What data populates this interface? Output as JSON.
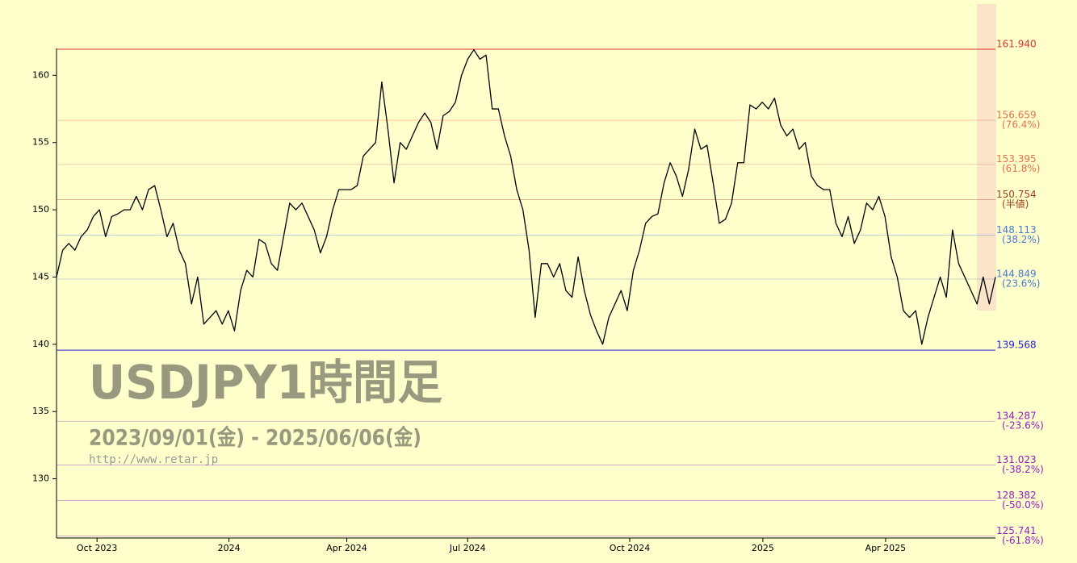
{
  "chart_data": {
    "type": "line",
    "title": "USDJPY1時間足",
    "subtitle": "2023/09/01(金) - 2025/06/06(金)",
    "source": "http://www.retar.jp",
    "color": "#000000",
    "values": [
      145,
      147,
      147.5,
      147,
      148,
      148.5,
      149.5,
      150,
      148,
      149.5,
      149.7,
      150,
      150,
      151,
      150,
      151.5,
      151.8,
      150,
      148,
      149,
      147,
      146,
      143,
      145,
      141.5,
      142,
      142.5,
      141.5,
      142.5,
      141,
      144,
      145.5,
      145,
      147.8,
      147.5,
      146,
      145.5,
      148,
      150.5,
      150,
      150.5,
      149.5,
      148.5,
      146.8,
      148,
      150,
      151.5,
      151.5,
      151.5,
      151.8,
      154,
      154.5,
      155,
      159.5,
      156,
      152,
      155,
      154.5,
      155.5,
      156.5,
      157.2,
      156.5,
      154.5,
      157,
      157.3,
      158,
      160,
      161.2,
      161.9,
      161.2,
      161.5,
      157.5,
      157.5,
      155.5,
      154,
      151.5,
      150,
      147,
      142,
      146,
      146,
      145,
      146,
      144,
      143.5,
      146.5,
      144,
      142.2,
      141,
      140,
      142,
      143,
      144,
      142.5,
      145.5,
      147,
      149,
      149.5,
      149.7,
      152,
      153.5,
      152.5,
      151,
      153,
      156,
      154.5,
      154.8,
      152,
      149,
      149.3,
      150.5,
      153.5,
      153.5,
      157.8,
      157.5,
      158,
      157.5,
      158.3,
      156.3,
      155.5,
      156,
      154.5,
      155,
      152.5,
      151.8,
      151.5,
      151.5,
      149,
      148,
      149.5,
      147.5,
      148.5,
      150.5,
      150,
      151,
      149.5,
      146.5,
      145,
      142.5,
      142,
      142.5,
      140,
      142,
      143.5,
      145,
      143.5,
      148.5,
      146,
      145,
      144,
      143,
      145,
      143,
      145
    ],
    "xlim": [
      0,
      153
    ],
    "xticks": [
      {
        "value": 6.6,
        "label": "Oct 2023"
      },
      {
        "value": 28.1,
        "label": "2024"
      },
      {
        "value": 47.3,
        "label": "Apr 2024"
      },
      {
        "value": 67,
        "label": "Jul 2024"
      },
      {
        "value": 93.4,
        "label": "Oct 2024"
      },
      {
        "value": 115.1,
        "label": "2025"
      },
      {
        "value": 135.1,
        "label": "Apr 2025"
      }
    ],
    "ylim": [
      125.6,
      162.0
    ],
    "yticks": [
      130,
      135,
      140,
      145,
      150,
      155,
      160
    ],
    "levels": [
      {
        "value": 161.94,
        "label": "161.940",
        "color": "#e03030"
      },
      {
        "value": 156.659,
        "label": "156.659",
        "ratio": "(76.4%)",
        "color": "#e8704a"
      },
      {
        "value": 153.395,
        "label": "153.395",
        "ratio": "(61.8%)",
        "color": "#e8704a"
      },
      {
        "value": 150.754,
        "label": "150.754",
        "ratio": "(半値)",
        "color": "#a04020"
      },
      {
        "value": 148.113,
        "label": "148.113",
        "ratio": "(38.2%)",
        "color": "#4a78d8"
      },
      {
        "value": 144.849,
        "label": "144.849",
        "ratio": "(23.6%)",
        "color": "#4a78d8"
      },
      {
        "value": 139.568,
        "label": "139.568",
        "color": "#2020e0"
      },
      {
        "value": 134.287,
        "label": "134.287",
        "ratio": "(-23.6%)",
        "color": "#9020c0"
      },
      {
        "value": 131.023,
        "label": "131.023",
        "ratio": "(-38.2%)",
        "color": "#9020c0"
      },
      {
        "value": 128.382,
        "label": "128.382",
        "ratio": "(-50.0%)",
        "color": "#9020c0"
      },
      {
        "value": 125.741,
        "label": "125.741",
        "ratio": "(-61.8%)",
        "color": "#9020c0"
      }
    ]
  }
}
